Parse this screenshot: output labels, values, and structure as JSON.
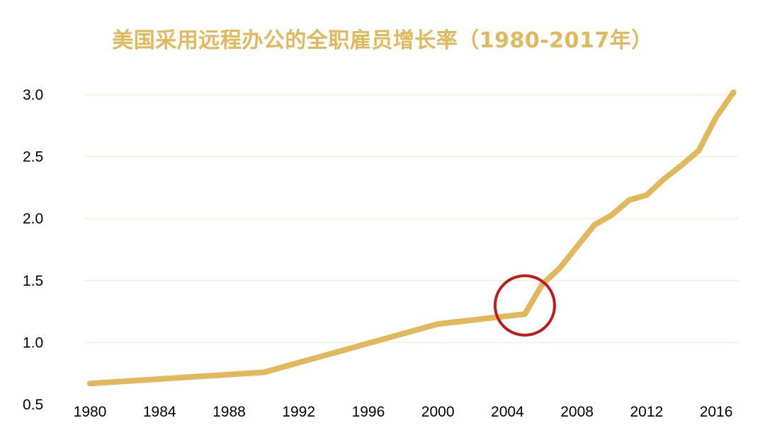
{
  "chart_data": {
    "type": "line",
    "title": "美国采用远程办公的全职雇员增长率（1980-2017年）",
    "xlabel": "",
    "ylabel": "",
    "x_ticks": [
      "1980",
      "1984",
      "1988",
      "1992",
      "1996",
      "2000",
      "2004",
      "2008",
      "2012",
      "2016"
    ],
    "y_ticks": [
      "0.5",
      "1.0",
      "1.5",
      "2.0",
      "2.5",
      "3.0"
    ],
    "xlim": [
      1980,
      2017.3
    ],
    "ylim": [
      0.5,
      3.0
    ],
    "grid": true,
    "legend": "none",
    "series": [
      {
        "x": [
          1980,
          1990,
          2000,
          2005,
          2006,
          2007,
          2009,
          2010,
          2011,
          2012,
          2013,
          2014,
          2015,
          2016,
          2017
        ],
        "y": [
          0.67,
          0.76,
          1.15,
          1.23,
          1.47,
          1.6,
          1.95,
          2.03,
          2.15,
          2.19,
          2.32,
          2.43,
          2.55,
          2.82,
          3.02
        ]
      }
    ],
    "annotation": {
      "type": "circle",
      "x": 2005,
      "y": 1.3
    },
    "colors": {
      "line": "#e2b85c",
      "title": "#e2b85c",
      "grid": "#f6efd9",
      "annotation": "#c01b1b"
    }
  }
}
